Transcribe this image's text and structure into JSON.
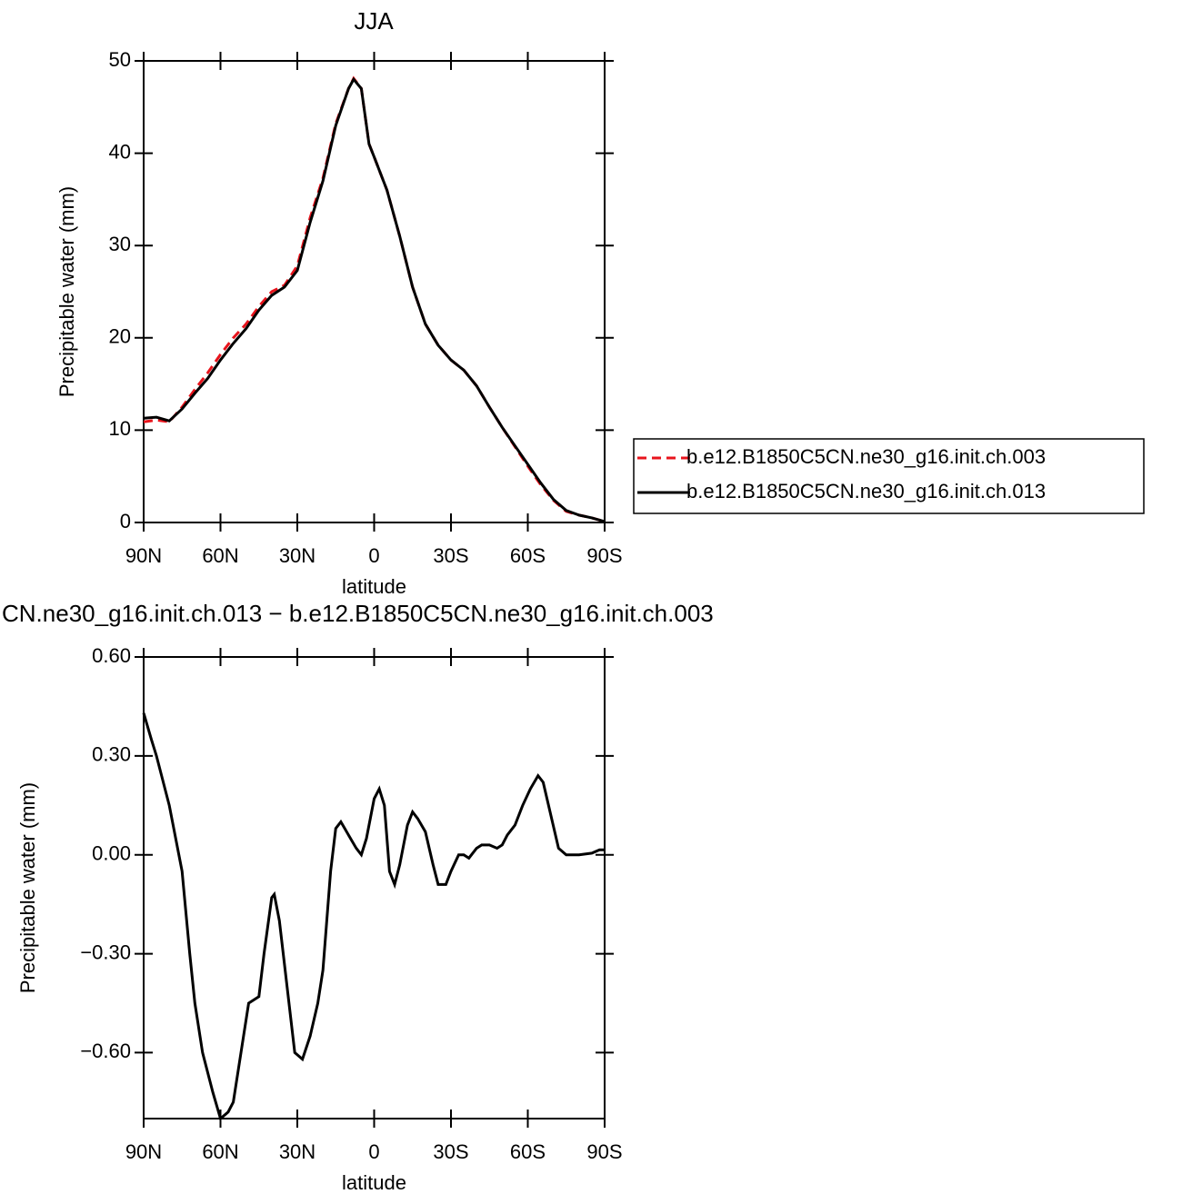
{
  "chart_data": [
    {
      "type": "line",
      "title": "JJA",
      "xlabel": "latitude",
      "ylabel": "Precipitable water (mm)",
      "x": [
        90,
        85,
        80,
        75,
        70,
        65,
        60,
        55,
        50,
        45,
        40,
        35,
        30,
        25,
        20,
        15,
        10,
        8,
        5,
        2,
        0,
        -5,
        -10,
        -15,
        -20,
        -25,
        -30,
        -35,
        -40,
        -45,
        -50,
        -55,
        -60,
        -65,
        -70,
        -75,
        -80,
        -85,
        -90
      ],
      "series": [
        {
          "name": "b.e12.B1850C5CN.ne30_g16.init.ch.003",
          "color": "#e8141c",
          "dash": true,
          "values": [
            10.9,
            11.1,
            10.9,
            12.5,
            14.4,
            16.2,
            18.2,
            20.0,
            21.5,
            23.4,
            25.0,
            25.7,
            27.8,
            33.0,
            37.3,
            43.2,
            47.0,
            48.1,
            47.0,
            41.0,
            39.6,
            36.0,
            31.0,
            25.5,
            21.5,
            19.2,
            17.6,
            16.5,
            14.8,
            12.5,
            10.3,
            8.2,
            6.1,
            4.1,
            2.4,
            1.2,
            0.8,
            0.5,
            0.1
          ]
        },
        {
          "name": "b.e12.B1850C5CN.ne30_g16.init.ch.013",
          "color": "#000000",
          "dash": false,
          "values": [
            11.3,
            11.4,
            11.0,
            12.3,
            14.0,
            15.6,
            17.6,
            19.4,
            21.0,
            23.0,
            24.6,
            25.5,
            27.3,
            32.5,
            37.0,
            43.0,
            47.0,
            48.0,
            47.0,
            41.0,
            39.6,
            36.0,
            31.0,
            25.5,
            21.5,
            19.2,
            17.6,
            16.5,
            14.8,
            12.5,
            10.3,
            8.3,
            6.3,
            4.3,
            2.5,
            1.3,
            0.8,
            0.5,
            0.1
          ]
        }
      ],
      "xlim": [
        90,
        -90
      ],
      "xticks": [
        {
          "value": 90,
          "label": "90N"
        },
        {
          "value": 60,
          "label": "60N"
        },
        {
          "value": 30,
          "label": "30N"
        },
        0,
        {
          "value": -30,
          "label": "30S"
        },
        {
          "value": -60,
          "label": "60S"
        },
        {
          "value": -90,
          "label": "90S"
        }
      ],
      "ylim": [
        0,
        50
      ],
      "yticks": [
        0,
        10,
        20,
        30,
        40,
        50
      ],
      "legend": "right"
    },
    {
      "type": "line",
      "title": "CN.ne30_g16.init.ch.013 − b.e12.B1850C5CN.ne30_g16.init.ch.003",
      "xlabel": "latitude",
      "ylabel": "Precipitable water (mm)",
      "x": [
        90,
        87,
        85,
        80,
        75,
        72,
        70,
        67,
        63,
        60,
        57,
        55,
        52,
        49,
        47,
        45,
        43,
        40,
        39,
        37,
        34,
        31,
        28,
        25,
        22,
        20,
        17,
        15,
        13,
        10,
        7,
        5,
        3,
        0,
        -2,
        -4,
        -6,
        -8,
        -10,
        -13,
        -15,
        -17,
        -20,
        -23,
        -25,
        -28,
        -30,
        -33,
        -35,
        -37,
        -40,
        -42,
        -45,
        -48,
        -50,
        -52,
        -55,
        -58,
        -61,
        -64,
        -66,
        -69,
        -72,
        -75,
        -80,
        -85,
        -88,
        -90
      ],
      "values": [
        0.43,
        0.35,
        0.3,
        0.15,
        -0.05,
        -0.3,
        -0.45,
        -0.6,
        -0.72,
        -0.8,
        -0.78,
        -0.75,
        -0.6,
        -0.45,
        -0.44,
        -0.43,
        -0.3,
        -0.13,
        -0.12,
        -0.2,
        -0.4,
        -0.6,
        -0.62,
        -0.55,
        -0.45,
        -0.35,
        -0.05,
        0.08,
        0.1,
        0.06,
        0.02,
        0.0,
        0.05,
        0.17,
        0.2,
        0.15,
        -0.05,
        -0.09,
        -0.03,
        0.09,
        0.13,
        0.11,
        0.07,
        -0.03,
        -0.09,
        -0.09,
        -0.05,
        0.0,
        0.0,
        -0.01,
        0.02,
        0.03,
        0.03,
        0.02,
        0.03,
        0.06,
        0.09,
        0.15,
        0.2,
        0.24,
        0.22,
        0.12,
        0.02,
        0.0,
        0.0,
        0.005,
        0.015,
        0.015
      ],
      "color": "#000000",
      "xlim": [
        90,
        -90
      ],
      "xticks": [
        {
          "value": 90,
          "label": "90N"
        },
        {
          "value": 60,
          "label": "60N"
        },
        {
          "value": 30,
          "label": "30N"
        },
        0,
        {
          "value": -30,
          "label": "30S"
        },
        {
          "value": -60,
          "label": "60S"
        },
        {
          "value": -90,
          "label": "90S"
        }
      ],
      "ylim": [
        -0.8,
        0.6
      ],
      "yticks": [
        {
          "value": -0.6,
          "label": "−0.60"
        },
        {
          "value": -0.3,
          "label": "−0.30"
        },
        {
          "value": 0,
          "label": "0.00"
        },
        {
          "value": 0.3,
          "label": "0.30"
        },
        {
          "value": 0.6,
          "label": "0.60"
        }
      ]
    }
  ]
}
